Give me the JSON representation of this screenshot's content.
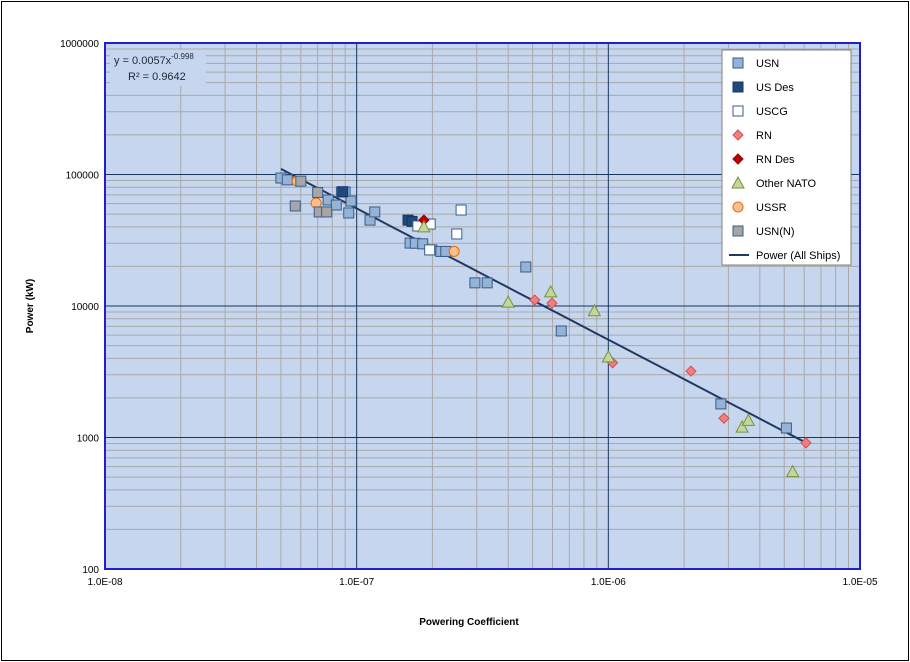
{
  "chart_data": {
    "type": "scatter",
    "title": "",
    "xlabel": "Powering Coefficient",
    "ylabel": "Power (kW)",
    "xscale": "log",
    "yscale": "log",
    "xlim": [
      1e-08,
      1e-05
    ],
    "ylim": [
      100,
      1000000
    ],
    "x_tick_labels": [
      "1.0E-08",
      "1.0E-07",
      "1.0E-06",
      "1.0E-05"
    ],
    "y_tick_labels": [
      "100",
      "1000",
      "10000",
      "100000",
      "1000000"
    ],
    "grid": true,
    "plot_background": "#c6d6ee",
    "legend_position": "top-right",
    "series": [
      {
        "name": "USN",
        "marker": "square",
        "fill": "#95b3d7",
        "stroke": "#385d8a",
        "points": [
          [
            5e-08,
            94000
          ],
          [
            5.3e-08,
            91000
          ],
          [
            7.7e-08,
            64000
          ],
          [
            8.3e-08,
            58600
          ],
          [
            8.7e-08,
            73600
          ],
          [
            9e-08,
            73600
          ],
          [
            9.3e-08,
            51000
          ],
          [
            9.5e-08,
            62800
          ],
          [
            1.13e-07,
            45000
          ],
          [
            1.18e-07,
            51900
          ],
          [
            1.63e-07,
            30100
          ],
          [
            1.71e-07,
            30000
          ],
          [
            1.83e-07,
            29700
          ],
          [
            1.99e-07,
            26700
          ],
          [
            2.16e-07,
            26000
          ],
          [
            2.26e-07,
            26000
          ],
          [
            2.95e-07,
            15000
          ],
          [
            3.3e-07,
            15000
          ],
          [
            4.7e-07,
            19800
          ],
          [
            6.5e-07,
            6460
          ],
          [
            2.8e-06,
            1800
          ],
          [
            5.1e-06,
            1180
          ]
        ]
      },
      {
        "name": "US Des",
        "marker": "square",
        "fill": "#1f497d",
        "stroke": "#17375e",
        "points": [
          [
            8.8e-08,
            74000
          ],
          [
            1.6e-07,
            45000
          ],
          [
            1.66e-07,
            44000
          ]
        ]
      },
      {
        "name": "USCG",
        "marker": "square",
        "fill": "#ffffff",
        "stroke": "#385d8a",
        "points": [
          [
            1.75e-07,
            40600
          ],
          [
            1.96e-07,
            42000
          ],
          [
            2.6e-07,
            53700
          ],
          [
            2.5e-07,
            35300
          ],
          [
            1.95e-07,
            26700
          ]
        ]
      },
      {
        "name": "RN",
        "marker": "diamond",
        "fill": "#f08080",
        "stroke": "#d05050",
        "points": [
          [
            5.1e-07,
            11100
          ],
          [
            5.97e-07,
            10500
          ],
          [
            1.04e-06,
            3700
          ],
          [
            2.13e-06,
            3200
          ],
          [
            2.88e-06,
            1400
          ],
          [
            6.1e-06,
            910
          ]
        ]
      },
      {
        "name": "RN Des",
        "marker": "diamond",
        "fill": "#c00000",
        "stroke": "#900000",
        "points": [
          [
            1.85e-07,
            45000
          ]
        ]
      },
      {
        "name": "Other NATO",
        "marker": "triangle",
        "fill": "#c3d69b",
        "stroke": "#77933c",
        "points": [
          [
            1.85e-07,
            40000
          ],
          [
            4e-07,
            10700
          ],
          [
            5.9e-07,
            12800
          ],
          [
            8.8e-07,
            9200
          ],
          [
            1e-06,
            4100
          ],
          [
            3.4e-06,
            1200
          ],
          [
            3.6e-06,
            1350
          ],
          [
            5.4e-06,
            550
          ]
        ]
      },
      {
        "name": "USSR",
        "marker": "circle",
        "fill": "#fac090",
        "stroke": "#e46c0a",
        "points": [
          [
            5.8e-08,
            89000
          ],
          [
            6.9e-08,
            60600
          ],
          [
            2.44e-07,
            26000
          ]
        ]
      },
      {
        "name": "USN(N)",
        "marker": "square",
        "fill": "#a6a6a6",
        "stroke": "#385d8a",
        "points": [
          [
            6e-08,
            89000
          ],
          [
            5.7e-08,
            57600
          ],
          [
            7e-08,
            73000
          ],
          [
            7.1e-08,
            51900
          ],
          [
            7.6e-08,
            51900
          ]
        ]
      }
    ],
    "trendline": {
      "name": "Power (All Ships)",
      "type": "power",
      "coefficient": 0.0057,
      "exponent": -0.998,
      "x_range": [
        5e-08,
        6.1e-06
      ],
      "color": "#1f3864",
      "equation_text": "y = 0.0057x",
      "equation_exponent": "-0.998",
      "r2_text": "R² = 0.9642"
    }
  }
}
